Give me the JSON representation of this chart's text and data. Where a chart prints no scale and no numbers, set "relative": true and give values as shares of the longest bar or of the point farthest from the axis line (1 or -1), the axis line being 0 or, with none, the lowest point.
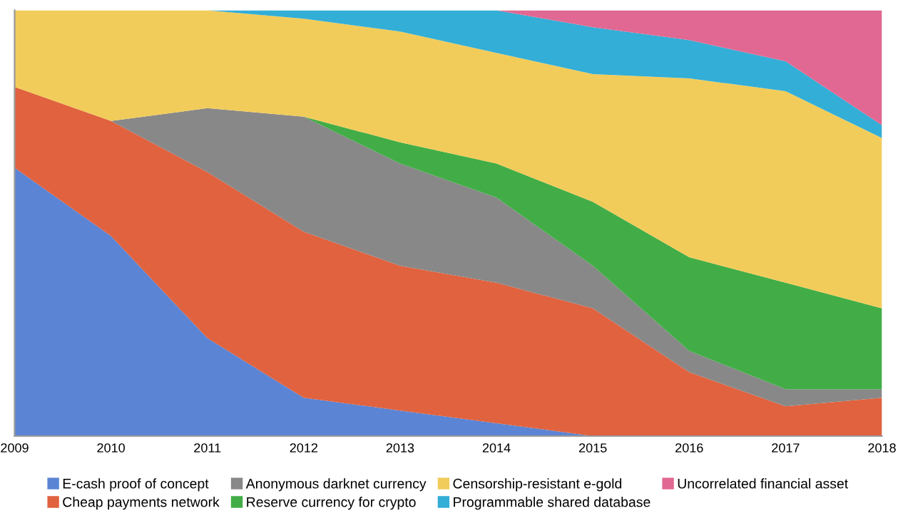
{
  "chart_data": {
    "type": "area",
    "stacked": true,
    "relative": true,
    "legend": "bottom",
    "grid": false,
    "categories": [
      "2009",
      "2010",
      "2011",
      "2012",
      "2013",
      "2014",
      "2015",
      "2016",
      "2017",
      "2018"
    ],
    "series": [
      {
        "name": "E-cash proof of concept",
        "color": "#5b84d4",
        "values": [
          0.63,
          0.47,
          0.23,
          0.09,
          0.06,
          0.03,
          0,
          0,
          0,
          0
        ]
      },
      {
        "name": "Cheap payments network",
        "color": "#e0623f",
        "values": [
          0.19,
          0.27,
          0.39,
          0.39,
          0.34,
          0.33,
          0.3,
          0.15,
          0.07,
          0.09
        ]
      },
      {
        "name": "Anonymous darknet currency",
        "color": "#888888",
        "values": [
          0,
          0,
          0.15,
          0.27,
          0.24,
          0.2,
          0.1,
          0.05,
          0.04,
          0.02
        ]
      },
      {
        "name": "Reserve currency for crypto",
        "color": "#42ad47",
        "values": [
          0,
          0,
          0,
          0,
          0.05,
          0.08,
          0.15,
          0.22,
          0.25,
          0.19
        ]
      },
      {
        "name": "Censorship-resistant e-gold",
        "color": "#f2cc5a",
        "values": [
          0.18,
          0.26,
          0.23,
          0.23,
          0.26,
          0.26,
          0.3,
          0.42,
          0.45,
          0.4
        ]
      },
      {
        "name": "Programmable shared database",
        "color": "#33aed6",
        "values": [
          0,
          0,
          0,
          0.02,
          0.05,
          0.1,
          0.11,
          0.09,
          0.07,
          0.03
        ]
      },
      {
        "name": "Uncorrelated financial asset",
        "color": "#e06892",
        "values": [
          0,
          0,
          0,
          0,
          0,
          0,
          0.04,
          0.07,
          0.12,
          0.27
        ]
      }
    ]
  }
}
